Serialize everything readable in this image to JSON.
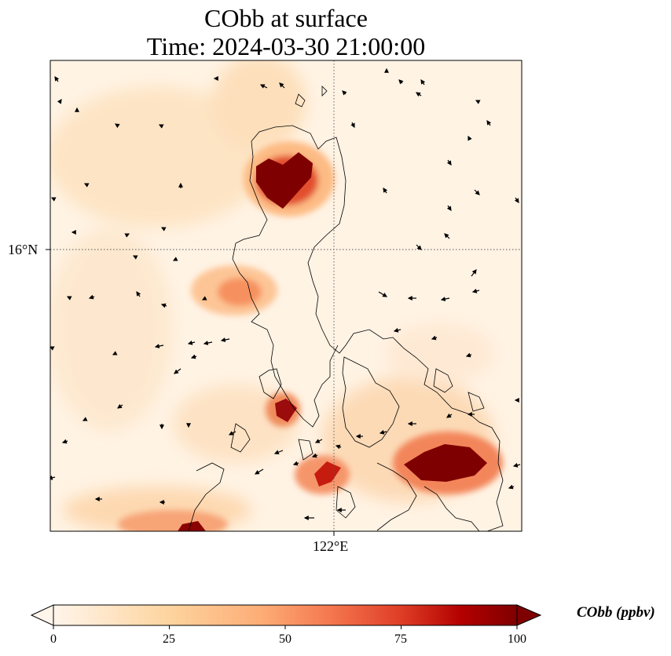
{
  "title": {
    "line1": "CObb at surface",
    "line2": "Time: 2024-03-30 21:00:00"
  },
  "map": {
    "lat_label": "16°N",
    "lon_label": "122°E",
    "colormap": [
      "#fff5eb",
      "#fdd49e",
      "#fdbb84",
      "#fc8d59",
      "#ef6548",
      "#d7301f",
      "#b30000",
      "#7f0000"
    ],
    "coast_color": "#000000",
    "grid_style": "dotted"
  },
  "colorbar": {
    "label": "CObb (ppbv)",
    "ticks": [
      "0",
      "25",
      "50",
      "75",
      "100"
    ],
    "range": [
      0,
      100
    ],
    "extend": "both"
  }
}
